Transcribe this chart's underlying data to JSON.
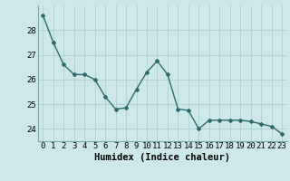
{
  "x": [
    0,
    1,
    2,
    3,
    4,
    5,
    6,
    7,
    8,
    9,
    10,
    11,
    12,
    13,
    14,
    15,
    16,
    17,
    18,
    19,
    20,
    21,
    22,
    23
  ],
  "y": [
    28.6,
    27.5,
    26.6,
    26.2,
    26.2,
    26.0,
    25.3,
    24.8,
    24.85,
    25.6,
    26.3,
    26.75,
    26.2,
    24.8,
    24.75,
    24.0,
    24.35,
    24.35,
    24.35,
    24.35,
    24.3,
    24.2,
    24.1,
    23.8
  ],
  "xlabel": "Humidex (Indice chaleur)",
  "ylim": [
    23.5,
    29.0
  ],
  "xlim": [
    -0.5,
    23.5
  ],
  "yticks": [
    24,
    25,
    26,
    27,
    28
  ],
  "xticks": [
    0,
    1,
    2,
    3,
    4,
    5,
    6,
    7,
    8,
    9,
    10,
    11,
    12,
    13,
    14,
    15,
    16,
    17,
    18,
    19,
    20,
    21,
    22,
    23
  ],
  "line_color": "#2d6b6b",
  "marker": "D",
  "marker_size": 2.0,
  "bg_color": "#cce8e8",
  "grid_color": "#aacccc",
  "xlabel_fontsize": 7.5,
  "tick_fontsize": 6.5,
  "line_width": 1.0
}
